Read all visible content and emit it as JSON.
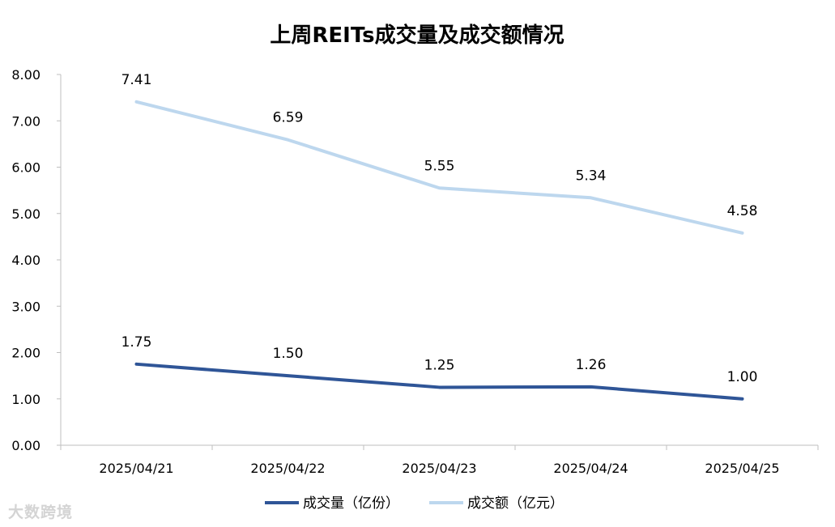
{
  "watermark": "大数跨境",
  "chart_data": {
    "type": "line",
    "title": "上周REITs成交量及成交额情况",
    "categories": [
      "2025/04/21",
      "2025/04/22",
      "2025/04/23",
      "2025/04/24",
      "2025/04/25"
    ],
    "ylim": [
      0,
      8
    ],
    "yticks": [
      "0.00",
      "1.00",
      "2.00",
      "3.00",
      "4.00",
      "5.00",
      "6.00",
      "7.00",
      "8.00"
    ],
    "grid": false,
    "legend_position": "bottom",
    "series": [
      {
        "name": "成交量（亿份）",
        "color": "#2f5597",
        "values": [
          1.75,
          1.5,
          1.25,
          1.26,
          1.0
        ],
        "labels": [
          "1.75",
          "1.50",
          "1.25",
          "1.26",
          "1.00"
        ]
      },
      {
        "name": "成交额（亿元）",
        "color": "#bdd7ee",
        "values": [
          7.41,
          6.59,
          5.55,
          5.34,
          4.58
        ],
        "labels": [
          "7.41",
          "6.59",
          "5.55",
          "5.34",
          "4.58"
        ]
      }
    ]
  }
}
